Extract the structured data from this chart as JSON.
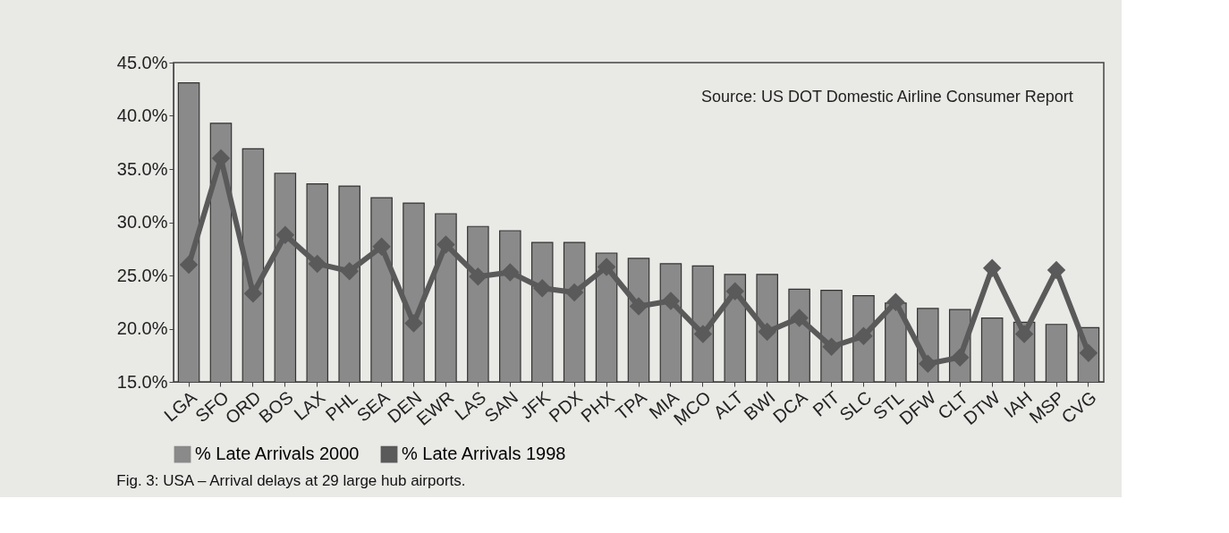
{
  "chart_data": {
    "type": "bar",
    "title": "Fig. 3: USA – Arrival delays at 29 large hub airports.",
    "categories": [
      "LGA",
      "SFO",
      "ORD",
      "BOS",
      "LAX",
      "PHL",
      "SEA",
      "DEN",
      "EWR",
      "LAS",
      "SAN",
      "JFK",
      "PDX",
      "PHX",
      "TPA",
      "MIA",
      "MCO",
      "ALT",
      "BWI",
      "DCA",
      "PIT",
      "SLC",
      "STL",
      "DFW",
      "CLT",
      "DTW",
      "IAH",
      "MSP",
      "CVG"
    ],
    "series": [
      {
        "name": "% Late Arrivals 2000",
        "color": "#8a8a8a",
        "values": [
          43.1,
          39.3,
          36.9,
          34.6,
          33.6,
          33.4,
          32.3,
          31.8,
          30.8,
          29.6,
          29.2,
          28.1,
          28.1,
          27.1,
          26.6,
          26.1,
          25.9,
          25.1,
          25.1,
          23.7,
          23.6,
          23.1,
          22.4,
          21.9,
          21.8,
          21.0,
          20.6,
          20.4,
          20.1
        ]
      },
      {
        "name": "% Late Arrivals 1998",
        "type": "line",
        "color": "#5a5a5a",
        "values": [
          26.0,
          36.0,
          23.3,
          28.8,
          26.1,
          25.4,
          27.7,
          20.5,
          27.9,
          24.9,
          25.3,
          23.8,
          23.4,
          25.8,
          22.1,
          22.6,
          19.5,
          23.5,
          19.7,
          21.0,
          18.3,
          19.3,
          22.5,
          16.7,
          17.3,
          25.7,
          19.5,
          25.5,
          17.7
        ]
      }
    ],
    "ylim": [
      15,
      45
    ],
    "yticks": [
      {
        "value": 15,
        "label": "15.0%"
      },
      {
        "value": 20,
        "label": "20.0%"
      },
      {
        "value": 25,
        "label": "25.0%"
      },
      {
        "value": 30,
        "label": "30.0%"
      },
      {
        "value": 35,
        "label": "35.0%"
      },
      {
        "value": 40,
        "label": "40.0%"
      },
      {
        "value": 45,
        "label": "45.0%"
      }
    ],
    "annotations": [
      "Source:  US DOT Domestic Airline Consumer Report"
    ],
    "legend": "bottom",
    "marker": "diamond",
    "line_style": "solid",
    "grid": false
  }
}
